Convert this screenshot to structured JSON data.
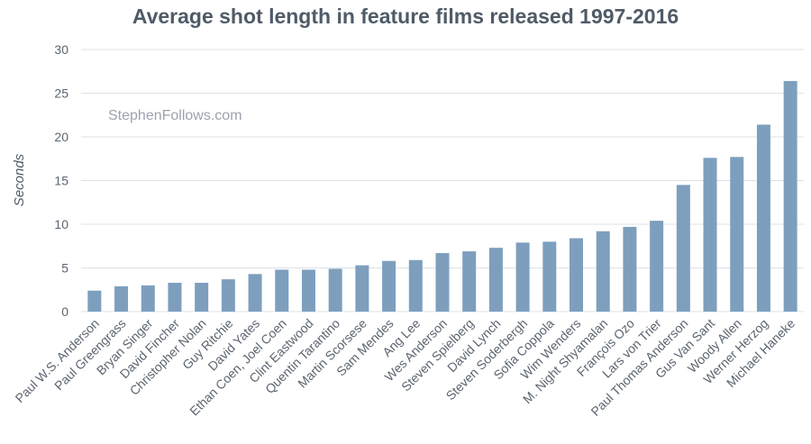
{
  "chart_data": {
    "type": "bar",
    "title": "Average shot length in feature films released 1997-2016",
    "ylabel": "Seconds",
    "xlabel": "",
    "ylim": [
      0,
      30
    ],
    "yticks": [
      0,
      5,
      10,
      15,
      20,
      25,
      30
    ],
    "grid": true,
    "bar_color": "#7d9fbd",
    "watermark": "StephenFollows.com",
    "categories": [
      "Paul W.S. Anderson",
      "Paul Greengrass",
      "Bryan Singer",
      "David Fincher",
      "Christopher Nolan",
      "Guy Ritchie",
      "David Yates",
      "Ethan Coen, Joel Coen",
      "Clint Eastwood",
      "Quentin Tarantino",
      "Martin Scorsese",
      "Sam Mendes",
      "Ang Lee",
      "Wes Anderson",
      "Steven Spielberg",
      "David Lynch",
      "Steven Soderbergh",
      "Sofia Coppola",
      "Wim Wenders",
      "M. Night Shyamalan",
      "François Ozo",
      "Lars von Trier",
      "Paul Thomas Anderson",
      "Gus Van Sant",
      "Woody Allen",
      "Werner Herzog",
      "Michael Haneke"
    ],
    "values": [
      2.4,
      2.9,
      3.0,
      3.3,
      3.3,
      3.7,
      4.3,
      4.8,
      4.8,
      4.9,
      5.3,
      5.8,
      5.9,
      6.7,
      6.9,
      7.3,
      7.9,
      8.0,
      8.4,
      9.2,
      9.7,
      10.4,
      14.5,
      17.6,
      17.7,
      21.4,
      26.4
    ]
  }
}
